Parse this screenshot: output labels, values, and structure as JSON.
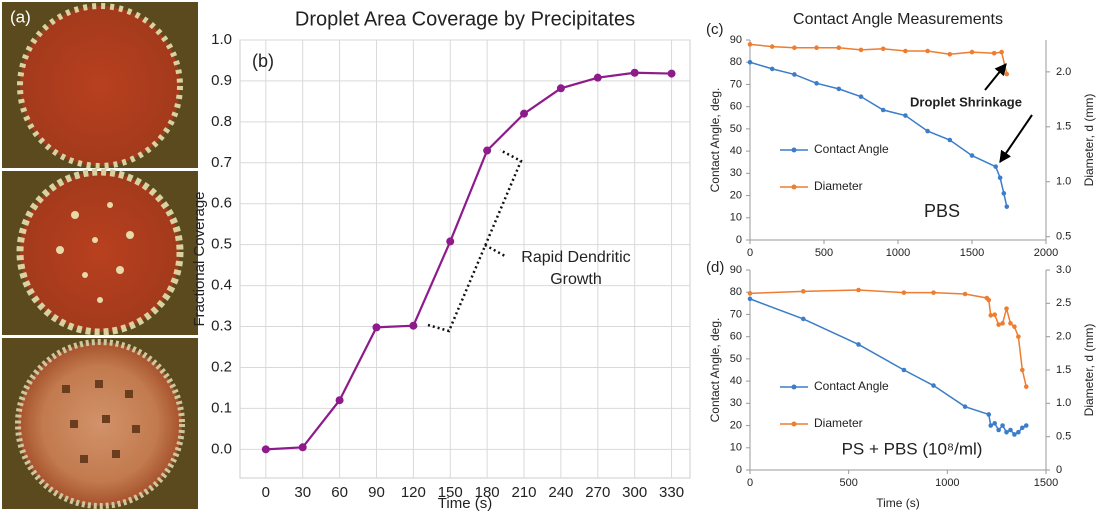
{
  "photo_panel": {
    "label": "(a)"
  },
  "chart_data": [
    {
      "type": "line",
      "panel_label": "(b)",
      "title": "Droplet Area Coverage by Precipitates",
      "x_label": "Time (s)",
      "y_label": "Fractional Coverage",
      "x": [
        0,
        30,
        60,
        90,
        120,
        150,
        180,
        210,
        240,
        270,
        300,
        330
      ],
      "values": [
        0,
        0.005,
        0.12,
        0.298,
        0.302,
        0.508,
        0.73,
        0.82,
        0.882,
        0.908,
        0.92,
        0.918
      ],
      "color": "#8e1b8c",
      "xlim": [
        -21,
        345
      ],
      "xticks": [
        0,
        30,
        60,
        90,
        120,
        150,
        180,
        210,
        240,
        270,
        300,
        330
      ],
      "ylim": [
        -0.07,
        1.0
      ],
      "yticks": [
        {
          "value": 0,
          "label": "0.0"
        },
        0.1,
        0.2,
        0.3,
        0.4,
        0.5,
        0.6,
        0.7,
        0.8,
        0.9,
        {
          "value": 1,
          "label": "1.0"
        }
      ],
      "grid": true,
      "annotations": [
        "Rapid Dendritic",
        "Growth"
      ]
    },
    {
      "type": "line",
      "panel_label": "(c)",
      "title": "Contact Angle Measurements",
      "y_label": "Contact Angle, deg.",
      "y2_label": "Diameter, d (mm)",
      "series": [
        {
          "name": "Contact Angle",
          "color": "#3b7dc8",
          "x": [
            0,
            150,
            300,
            450,
            600,
            750,
            900,
            1050,
            1200,
            1350,
            1500,
            1660,
            1690,
            1715,
            1735
          ],
          "values": [
            80,
            77,
            74.5,
            70.5,
            68,
            64.5,
            58.5,
            56,
            49,
            45,
            38,
            33,
            28,
            21,
            15
          ]
        },
        {
          "name": "Diameter",
          "color": "#ed7d31",
          "axis": "y2",
          "x": [
            0,
            150,
            300,
            450,
            600,
            750,
            900,
            1050,
            1200,
            1350,
            1500,
            1650,
            1700,
            1735
          ],
          "values": [
            2.25,
            2.23,
            2.22,
            2.22,
            2.22,
            2.2,
            2.21,
            2.19,
            2.19,
            2.16,
            2.18,
            2.17,
            2.18,
            1.98
          ]
        }
      ],
      "xlim": [
        0,
        2000
      ],
      "xticks": [
        0,
        500,
        1000,
        1500,
        2000
      ],
      "ylim": [
        0,
        90
      ],
      "yticks": [
        0,
        10,
        20,
        30,
        40,
        50,
        60,
        70,
        80,
        90
      ],
      "y2lim": [
        0.47,
        2.29
      ],
      "y2ticks": [
        0.5,
        {
          "value": 1,
          "label": "1.0"
        },
        1.5,
        {
          "value": 2,
          "label": "2.0"
        }
      ],
      "grid": false,
      "annotations": [
        "Droplet Shrinkage",
        "PBS"
      ]
    },
    {
      "type": "line",
      "panel_label": "(d)",
      "x_label": "Time (s)",
      "y_label": "Contact Angle, deg.",
      "y2_label": "Diameter, d (mm)",
      "series": [
        {
          "name": "Contact Angle",
          "color": "#3b7dc8",
          "x": [
            0,
            270,
            550,
            780,
            930,
            1090,
            1210,
            1220,
            1240,
            1260,
            1280,
            1300,
            1320,
            1340,
            1360,
            1380,
            1400
          ],
          "values": [
            77,
            68,
            56.5,
            45,
            38,
            28.5,
            25,
            20,
            21,
            18,
            20,
            17,
            18,
            16,
            17,
            19,
            20
          ]
        },
        {
          "name": "Diameter",
          "color": "#ed7d31",
          "axis": "y2",
          "x": [
            0,
            270,
            550,
            780,
            930,
            1090,
            1200,
            1210,
            1220,
            1240,
            1260,
            1280,
            1300,
            1320,
            1340,
            1360,
            1380,
            1400
          ],
          "values": [
            2.65,
            2.68,
            2.7,
            2.66,
            2.66,
            2.64,
            2.58,
            2.55,
            2.32,
            2.33,
            2.18,
            2.2,
            2.42,
            2.2,
            2.15,
            2.0,
            1.5,
            1.25
          ]
        }
      ],
      "xlim": [
        0,
        1500
      ],
      "xticks": [
        0,
        500,
        1000,
        1500
      ],
      "ylim": [
        0,
        90
      ],
      "yticks": [
        0,
        10,
        20,
        30,
        40,
        50,
        60,
        70,
        80,
        90
      ],
      "y2lim": [
        0,
        3
      ],
      "y2ticks": [
        0,
        0.5,
        {
          "value": 1,
          "label": "1.0"
        },
        1.5,
        {
          "value": 2,
          "label": "2.0"
        },
        2.5,
        {
          "value": 3,
          "label": "3.0"
        }
      ],
      "grid": false,
      "annotations": [
        "PS + PBS (10⁸/ml)"
      ]
    }
  ]
}
